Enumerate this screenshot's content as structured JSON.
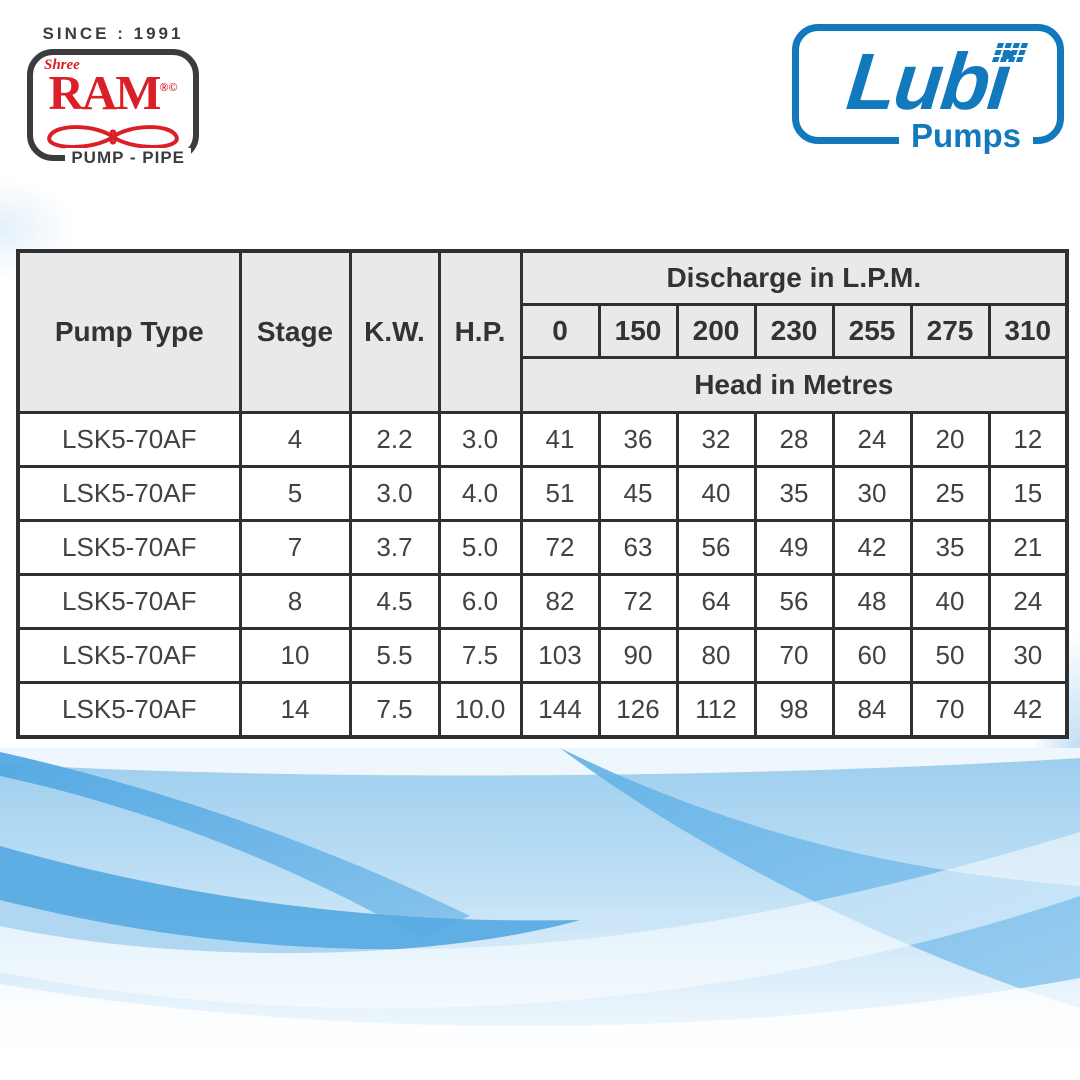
{
  "branding": {
    "ram": {
      "since": "SINCE : 1991",
      "shree": "Shree",
      "name": "RAM",
      "marks": "®©",
      "tagline": "PUMP - PIPE",
      "red": "#da1f26",
      "dark": "#3c3c3e"
    },
    "lubi": {
      "name": "Lubi",
      "tagline": "Pumps",
      "blue": "#1279bd"
    }
  },
  "table": {
    "header": {
      "pump_type": "Pump Type",
      "stage": "Stage",
      "kw": "K.W.",
      "hp": "H.P.",
      "discharge_title": "Discharge in L.P.M.",
      "head_title": "Head in Metres",
      "discharge_values": [
        "0",
        "150",
        "200",
        "230",
        "255",
        "275",
        "310"
      ]
    },
    "bold_discharge_indices": [
      2,
      3
    ],
    "rows": [
      {
        "pump_type": "LSK5-70AF",
        "stage": "4",
        "kw": "2.2",
        "hp": "3.0",
        "heads": [
          "41",
          "36",
          "32",
          "28",
          "24",
          "20",
          "12"
        ]
      },
      {
        "pump_type": "LSK5-70AF",
        "stage": "5",
        "kw": "3.0",
        "hp": "4.0",
        "heads": [
          "51",
          "45",
          "40",
          "35",
          "30",
          "25",
          "15"
        ]
      },
      {
        "pump_type": "LSK5-70AF",
        "stage": "7",
        "kw": "3.7",
        "hp": "5.0",
        "heads": [
          "72",
          "63",
          "56",
          "49",
          "42",
          "35",
          "21"
        ]
      },
      {
        "pump_type": "LSK5-70AF",
        "stage": "8",
        "kw": "4.5",
        "hp": "6.0",
        "heads": [
          "82",
          "72",
          "64",
          "56",
          "48",
          "40",
          "24"
        ]
      },
      {
        "pump_type": "LSK5-70AF",
        "stage": "10",
        "kw": "5.5",
        "hp": "7.5",
        "heads": [
          "103",
          "90",
          "80",
          "70",
          "60",
          "50",
          "30"
        ]
      },
      {
        "pump_type": "LSK5-70AF",
        "stage": "14",
        "kw": "7.5",
        "hp": "10.0",
        "heads": [
          "144",
          "126",
          "112",
          "98",
          "84",
          "70",
          "42"
        ]
      }
    ]
  }
}
